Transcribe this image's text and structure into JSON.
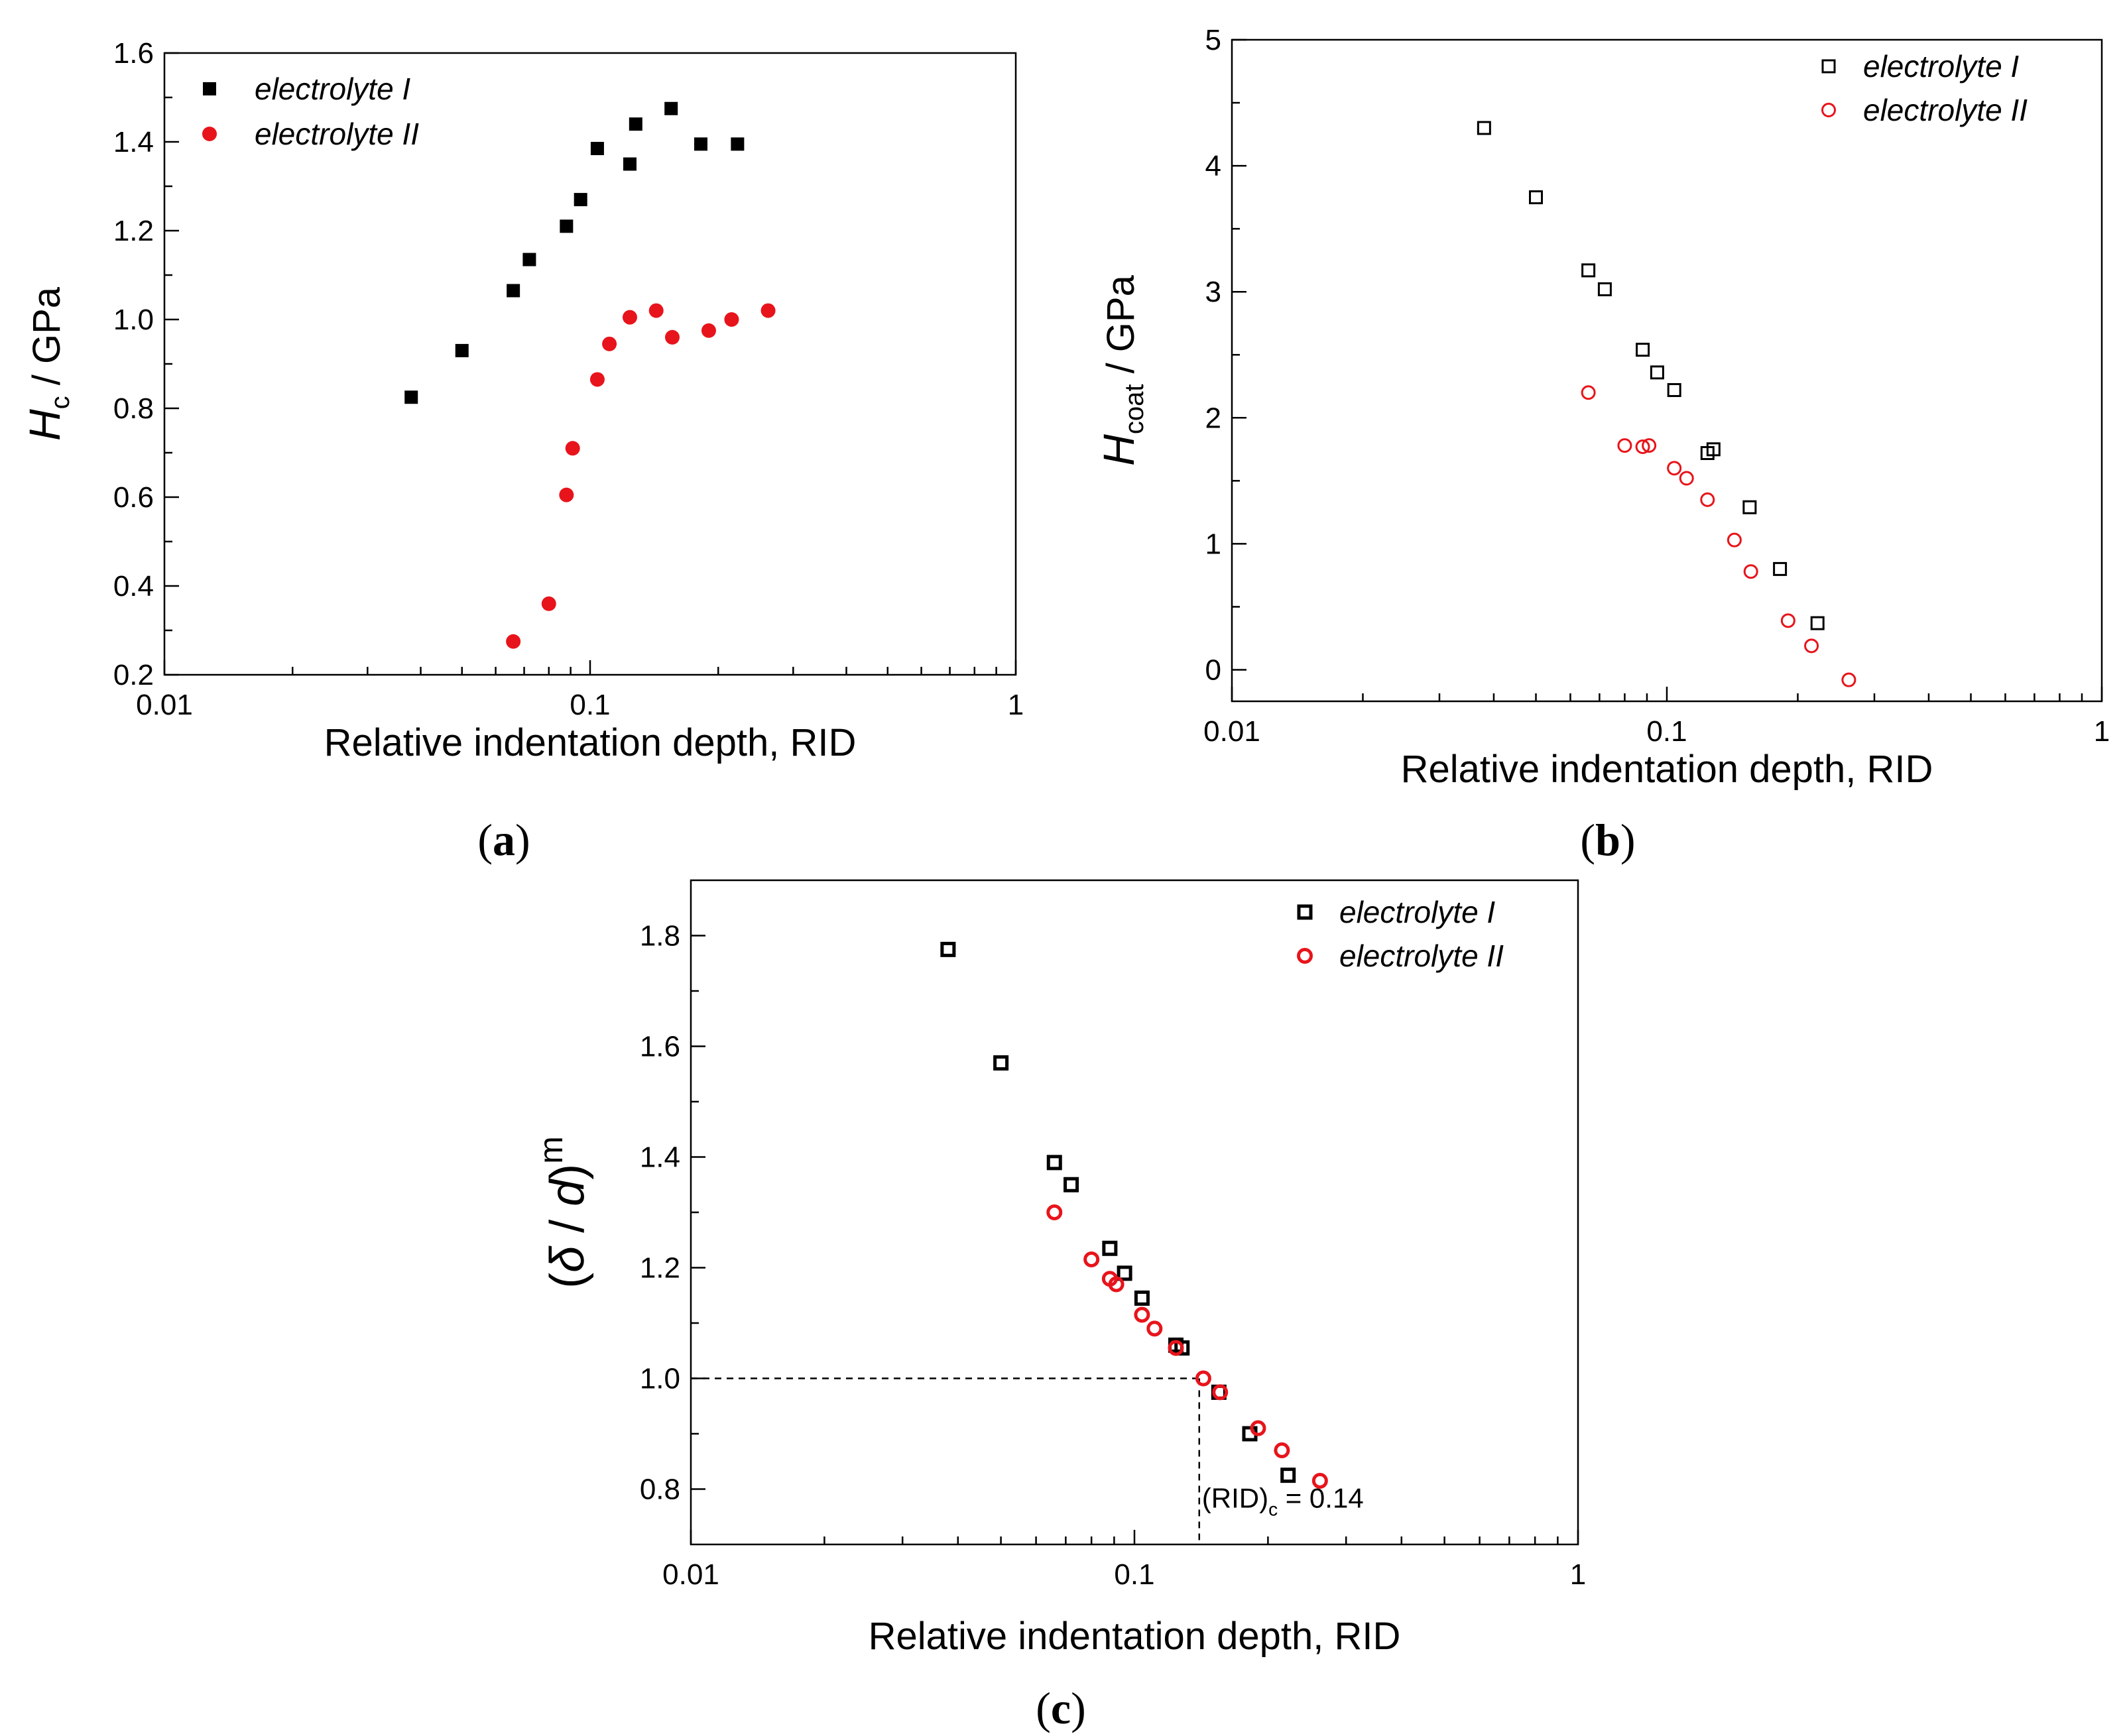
{
  "colors": {
    "series1": "#000000",
    "series2": "#e8141b"
  },
  "chart_data": [
    {
      "panel": "(a)",
      "type": "scatter",
      "xscale": "log",
      "xlim": [
        0.01,
        1
      ],
      "ylim": [
        0.2,
        1.6
      ],
      "xticks": [
        0.01,
        0.1,
        1
      ],
      "xtick_labels": [
        "0.01",
        "0.1",
        "1"
      ],
      "yticks": [
        0.2,
        0.4,
        0.6,
        0.8,
        1.0,
        1.2,
        1.4,
        1.6
      ],
      "ytick_labels": [
        "0.2",
        "0.4",
        "0.6",
        "0.8",
        "1.0",
        "1.2",
        "1.4",
        "1.6"
      ],
      "xlabel": "Relative indentation depth, RID",
      "ylabel": {
        "main": "H",
        "sub": "c",
        "rest": " / GPa"
      },
      "legend_position": "top-left",
      "series": [
        {
          "name": "electrolyte I",
          "marker": "square-filled",
          "x": [
            0.038,
            0.05,
            0.066,
            0.072,
            0.088,
            0.095,
            0.104,
            0.124,
            0.128,
            0.155,
            0.182,
            0.222
          ],
          "y": [
            0.825,
            0.93,
            1.065,
            1.135,
            1.21,
            1.27,
            1.385,
            1.35,
            1.44,
            1.475,
            1.395,
            1.395
          ]
        },
        {
          "name": "electrolyte II",
          "marker": "circle-filled",
          "x": [
            0.066,
            0.08,
            0.088,
            0.091,
            0.104,
            0.111,
            0.124,
            0.143,
            0.156,
            0.19,
            0.215,
            0.262
          ],
          "y": [
            0.275,
            0.36,
            0.605,
            0.71,
            0.865,
            0.945,
            1.005,
            1.02,
            0.96,
            0.975,
            1.0,
            1.02
          ]
        }
      ]
    },
    {
      "panel": "(b)",
      "type": "scatter",
      "xscale": "log",
      "xlim": [
        0.01,
        1
      ],
      "ylim": [
        -0.25,
        5
      ],
      "xticks": [
        0.01,
        0.1,
        1
      ],
      "xtick_labels": [
        "0.01",
        "0.1",
        "1"
      ],
      "yticks": [
        0,
        1,
        2,
        3,
        4,
        5
      ],
      "ytick_labels": [
        "0",
        "1",
        "2",
        "3",
        "4",
        "5"
      ],
      "xlabel": "Relative indentation depth, RID",
      "ylabel": {
        "main": "H",
        "sub": "coat",
        "rest": " / GPa"
      },
      "legend_position": "top-right",
      "series": [
        {
          "name": "electrolyte I",
          "marker": "square-open",
          "x": [
            0.038,
            0.05,
            0.066,
            0.072,
            0.088,
            0.095,
            0.104,
            0.124,
            0.128,
            0.155,
            0.182,
            0.222
          ],
          "y": [
            4.3,
            3.75,
            3.17,
            3.02,
            2.54,
            2.36,
            2.22,
            1.72,
            1.75,
            1.29,
            0.8,
            0.37
          ]
        },
        {
          "name": "electrolyte II",
          "marker": "circle-open",
          "x": [
            0.066,
            0.08,
            0.088,
            0.091,
            0.104,
            0.111,
            0.124,
            0.143,
            0.156,
            0.19,
            0.215,
            0.262
          ],
          "y": [
            2.2,
            1.78,
            1.77,
            1.78,
            1.6,
            1.52,
            1.35,
            1.03,
            0.78,
            0.39,
            0.19,
            -0.08
          ]
        }
      ]
    },
    {
      "panel": "(c)",
      "type": "scatter",
      "xscale": "log",
      "xlim": [
        0.01,
        1
      ],
      "ylim": [
        0.7,
        1.9
      ],
      "xticks": [
        0.01,
        0.1,
        1
      ],
      "xtick_labels": [
        "0.01",
        "0.1",
        "1"
      ],
      "yticks": [
        0.8,
        1.0,
        1.2,
        1.4,
        1.6,
        1.8
      ],
      "ytick_labels": [
        "0.8",
        "1.0",
        "1.2",
        "1.4",
        "1.6",
        "1.8"
      ],
      "xlabel": "Relative indentation depth, RID",
      "ylabel": {
        "pre": "(",
        "delta": "δ",
        "mid": " / ",
        "d": "d",
        "post": ")",
        "sup": "m"
      },
      "legend_position": "top-right",
      "reference_lines": {
        "y": 1.0,
        "x": 0.14
      },
      "annotation": {
        "pre": "(RID)",
        "sub": "c",
        "post": " = 0.14",
        "x": 0.14,
        "y": 0.8
      },
      "series": [
        {
          "name": "electrolyte I",
          "marker": "square-open-thick",
          "x": [
            0.038,
            0.05,
            0.066,
            0.072,
            0.088,
            0.095,
            0.104,
            0.124,
            0.128,
            0.155,
            0.182,
            0.222
          ],
          "y": [
            1.775,
            1.57,
            1.39,
            1.35,
            1.235,
            1.19,
            1.145,
            1.06,
            1.055,
            0.975,
            0.9,
            0.825
          ]
        },
        {
          "name": "electrolyte II",
          "marker": "circle-open-thick",
          "x": [
            0.066,
            0.08,
            0.088,
            0.091,
            0.104,
            0.111,
            0.124,
            0.143,
            0.156,
            0.19,
            0.215,
            0.262
          ],
          "y": [
            1.3,
            1.215,
            1.18,
            1.17,
            1.115,
            1.09,
            1.055,
            1.0,
            0.975,
            0.91,
            0.87,
            0.815
          ]
        }
      ]
    }
  ]
}
